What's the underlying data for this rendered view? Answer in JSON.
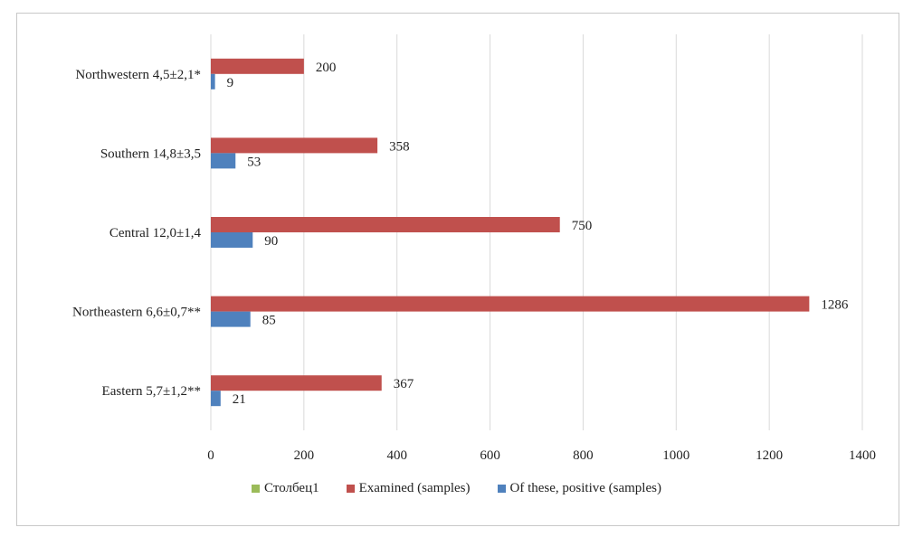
{
  "colors": {
    "stolbets": "#9BBB59",
    "examined": "#C0504D",
    "positive": "#4F81BD",
    "grid": "#d9d9d9"
  },
  "chart_data": {
    "type": "bar",
    "orientation": "horizontal",
    "categories": [
      "Northwestern 4,5±2,1*",
      "Southern 14,8±3,5",
      "Central 12,0±1,4",
      "Northeastern 6,6±0,7**",
      "Eastern 5,7±1,2**"
    ],
    "series": [
      {
        "name": "Столбец1",
        "values": [
          null,
          null,
          null,
          null,
          null
        ]
      },
      {
        "name": "Examined (samples)",
        "values": [
          200,
          358,
          750,
          1286,
          367
        ]
      },
      {
        "name": "Of these, positive (samples)",
        "values": [
          9,
          53,
          90,
          85,
          21
        ]
      }
    ],
    "xlim": [
      0,
      1400
    ],
    "xticks": [
      0,
      200,
      400,
      600,
      800,
      1000,
      1200,
      1400
    ],
    "grid": true,
    "legend_position": "bottom"
  }
}
